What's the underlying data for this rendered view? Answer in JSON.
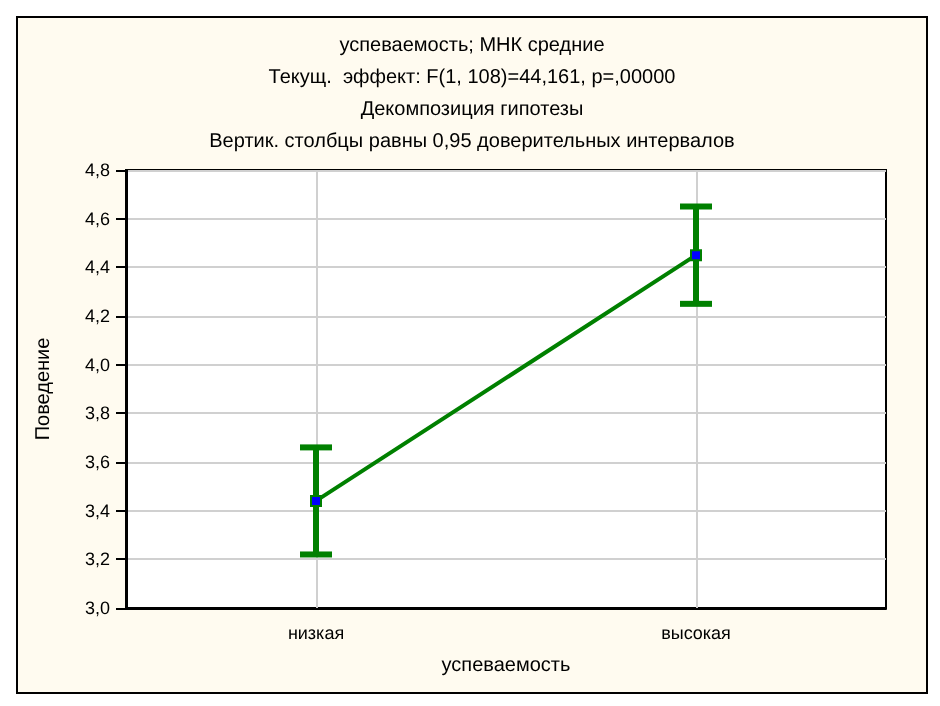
{
  "chart_data": {
    "type": "line",
    "title": "успеваемость; МНК средние",
    "subtitle": "Текущ.  эффект: F(1, 108)=44,161, p=,00000",
    "annotations": [
      "Декомпозиция гипотезы",
      "Вертик. столбцы равны 0,95 доверительных интервалов"
    ],
    "xlabel": "успеваемость",
    "ylabel": "Поведение",
    "categories": [
      "низкая",
      "высокая"
    ],
    "series": [
      {
        "color": "#008000",
        "values": [
          3.44,
          4.45
        ],
        "errors": [
          [
            3.22,
            3.66
          ],
          [
            4.25,
            4.65
          ]
        ]
      }
    ],
    "ylim": [
      3.0,
      4.8
    ],
    "yticks": [
      {
        "value": 3.0,
        "label": "3,0"
      },
      {
        "value": 3.2,
        "label": "3,2"
      },
      {
        "value": 3.4,
        "label": "3,4"
      },
      {
        "value": 3.6,
        "label": "3,6"
      },
      {
        "value": 3.8,
        "label": "3,8"
      },
      {
        "value": 4.0,
        "label": "4,0"
      },
      {
        "value": 4.2,
        "label": "4,2"
      },
      {
        "value": 4.4,
        "label": "4,4"
      },
      {
        "value": 4.6,
        "label": "4,6"
      },
      {
        "value": 4.8,
        "label": "4,8"
      }
    ],
    "grid": true,
    "marker": "square",
    "line_style": "solid"
  }
}
